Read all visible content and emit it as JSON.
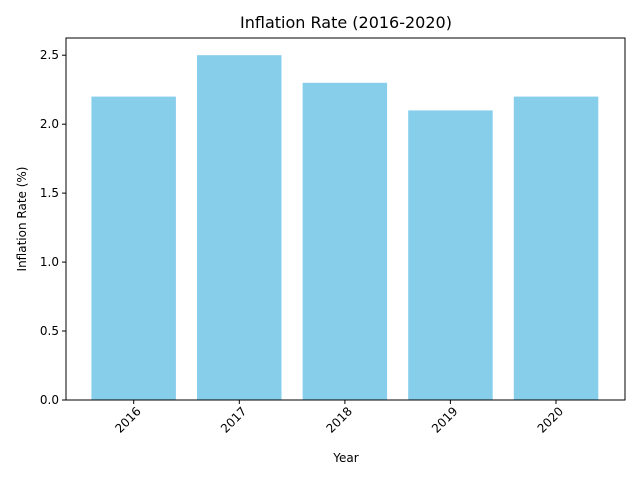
{
  "chart_data": {
    "type": "bar",
    "title": "Inflation Rate (2016-2020)",
    "xlabel": "Year",
    "ylabel": "Inflation Rate (%)",
    "categories": [
      "2016",
      "2017",
      "2018",
      "2019",
      "2020"
    ],
    "values": [
      2.2,
      2.5,
      2.3,
      2.1,
      2.2
    ],
    "ylim": [
      0,
      2.625
    ],
    "yticks": [
      "0.0",
      "0.5",
      "1.0",
      "1.5",
      "2.0",
      "2.5"
    ],
    "xtick_rotation": 45,
    "bar_color": "#87ceeb",
    "grid": false,
    "legend": "none"
  }
}
